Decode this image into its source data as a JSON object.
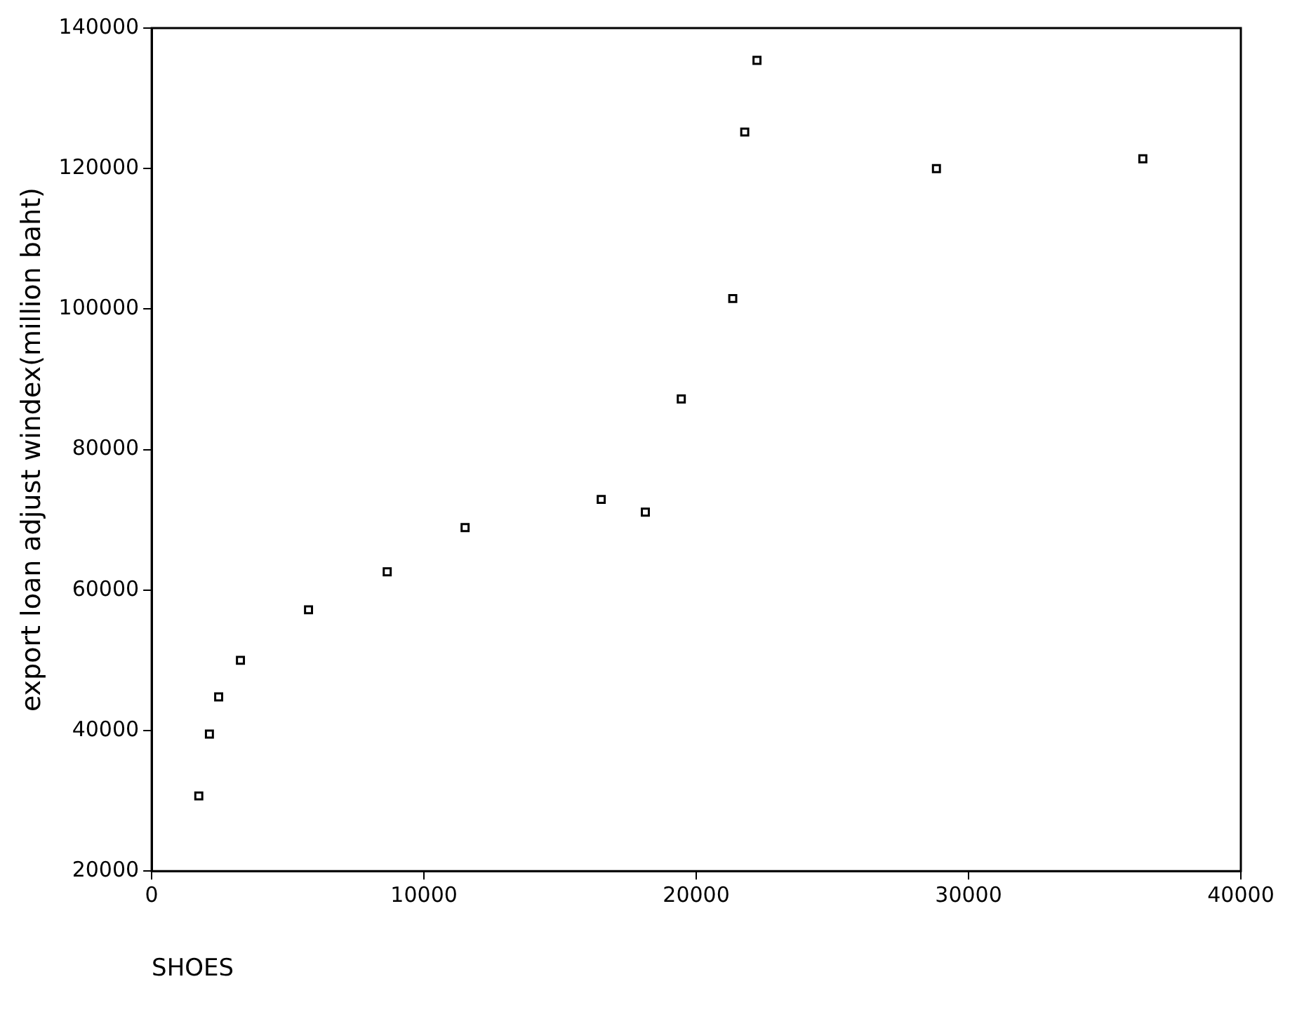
{
  "chart_data": {
    "type": "scatter",
    "xlabel": "SHOES",
    "ylabel": "export loan adjust windex(million baht)",
    "x": [
      1730,
      2120,
      2460,
      3260,
      5760,
      8650,
      11510,
      16510,
      18130,
      19450,
      21340,
      21780,
      22230,
      28820,
      36400
    ],
    "series": [
      {
        "color": "#000000",
        "values": [
          30700,
          39500,
          44800,
          50000,
          57200,
          62600,
          68900,
          72900,
          71100,
          87200,
          101500,
          125200,
          135400,
          120000,
          121400
        ]
      }
    ],
    "xlim": [
      0,
      40000
    ],
    "xticks": [
      0,
      10000,
      20000,
      30000,
      40000
    ],
    "ylim": [
      20000,
      140000
    ],
    "yticks": [
      20000,
      40000,
      60000,
      80000,
      100000,
      120000,
      140000
    ],
    "grid": false,
    "legend": false,
    "marker": "square"
  }
}
